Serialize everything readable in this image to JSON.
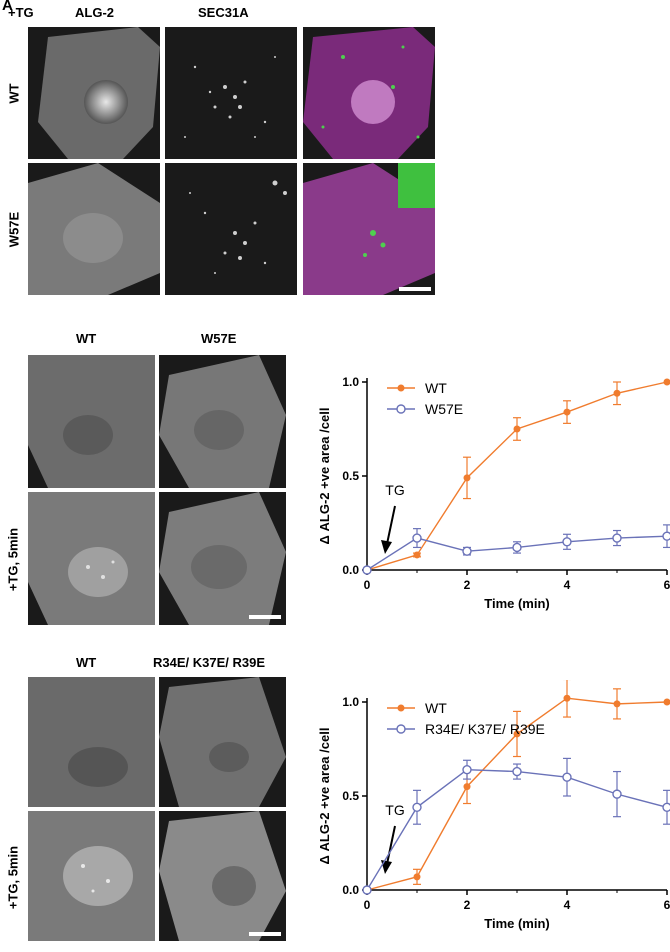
{
  "panel_a": {
    "letter": "A",
    "treatment_label": "+TG",
    "column_labels": [
      "ALG-2",
      "SEC31A"
    ],
    "row_labels": [
      "WT",
      "W57E"
    ]
  },
  "panel_b": {
    "column_labels": [
      "WT",
      "W57E"
    ],
    "row_label": "+TG, 5min"
  },
  "panel_c": {
    "column_labels": [
      "WT",
      "R34E/ K37E/ R39E"
    ],
    "row_label": "+TG, 5min"
  },
  "colors": {
    "wt": "#f07c2e",
    "mutant": "#6a72b8"
  },
  "chart_data": [
    {
      "type": "line",
      "x": [
        0,
        1,
        2,
        3,
        4,
        5,
        6
      ],
      "xlabel": "Time (min)",
      "ylabel": "Δ ALG-2 +ve area /cell",
      "xlim": [
        0,
        6
      ],
      "ylim": [
        0,
        1.0
      ],
      "xticks": [
        "0",
        "2",
        "4",
        "6"
      ],
      "yticks": [
        "0.0",
        "0.5",
        "1.0"
      ],
      "annotation": "TG",
      "legend": "top-left",
      "series": [
        {
          "name": "WT",
          "values": [
            0,
            0.08,
            0.49,
            0.75,
            0.84,
            0.94,
            1.0
          ],
          "errors": [
            0,
            0.01,
            0.11,
            0.06,
            0.06,
            0.06,
            0
          ],
          "marker": "filled"
        },
        {
          "name": "W57E",
          "values": [
            0,
            0.17,
            0.1,
            0.12,
            0.15,
            0.17,
            0.18
          ],
          "errors": [
            0,
            0.05,
            0.02,
            0.03,
            0.04,
            0.04,
            0.06
          ],
          "marker": "open"
        }
      ]
    },
    {
      "type": "line",
      "x": [
        0,
        1,
        2,
        3,
        4,
        5,
        6
      ],
      "xlabel": "Time (min)",
      "ylabel": "Δ ALG-2 +ve area /cell",
      "xlim": [
        0,
        6
      ],
      "ylim": [
        0,
        1.0
      ],
      "xticks": [
        "0",
        "2",
        "4",
        "6"
      ],
      "yticks": [
        "0.0",
        "0.5",
        "1.0"
      ],
      "annotation": "TG",
      "legend": "top-left",
      "series": [
        {
          "name": "WT",
          "values": [
            0,
            0.07,
            0.55,
            0.83,
            1.02,
            0.99,
            1.0
          ],
          "errors": [
            0,
            0.04,
            0.09,
            0.12,
            0.1,
            0.08,
            0
          ],
          "marker": "filled"
        },
        {
          "name": "R34E/ K37E/ R39E",
          "values": [
            0,
            0.44,
            0.64,
            0.63,
            0.6,
            0.51,
            0.44
          ],
          "errors": [
            0,
            0.09,
            0.05,
            0.04,
            0.1,
            0.12,
            0.09
          ],
          "marker": "open"
        }
      ]
    }
  ]
}
